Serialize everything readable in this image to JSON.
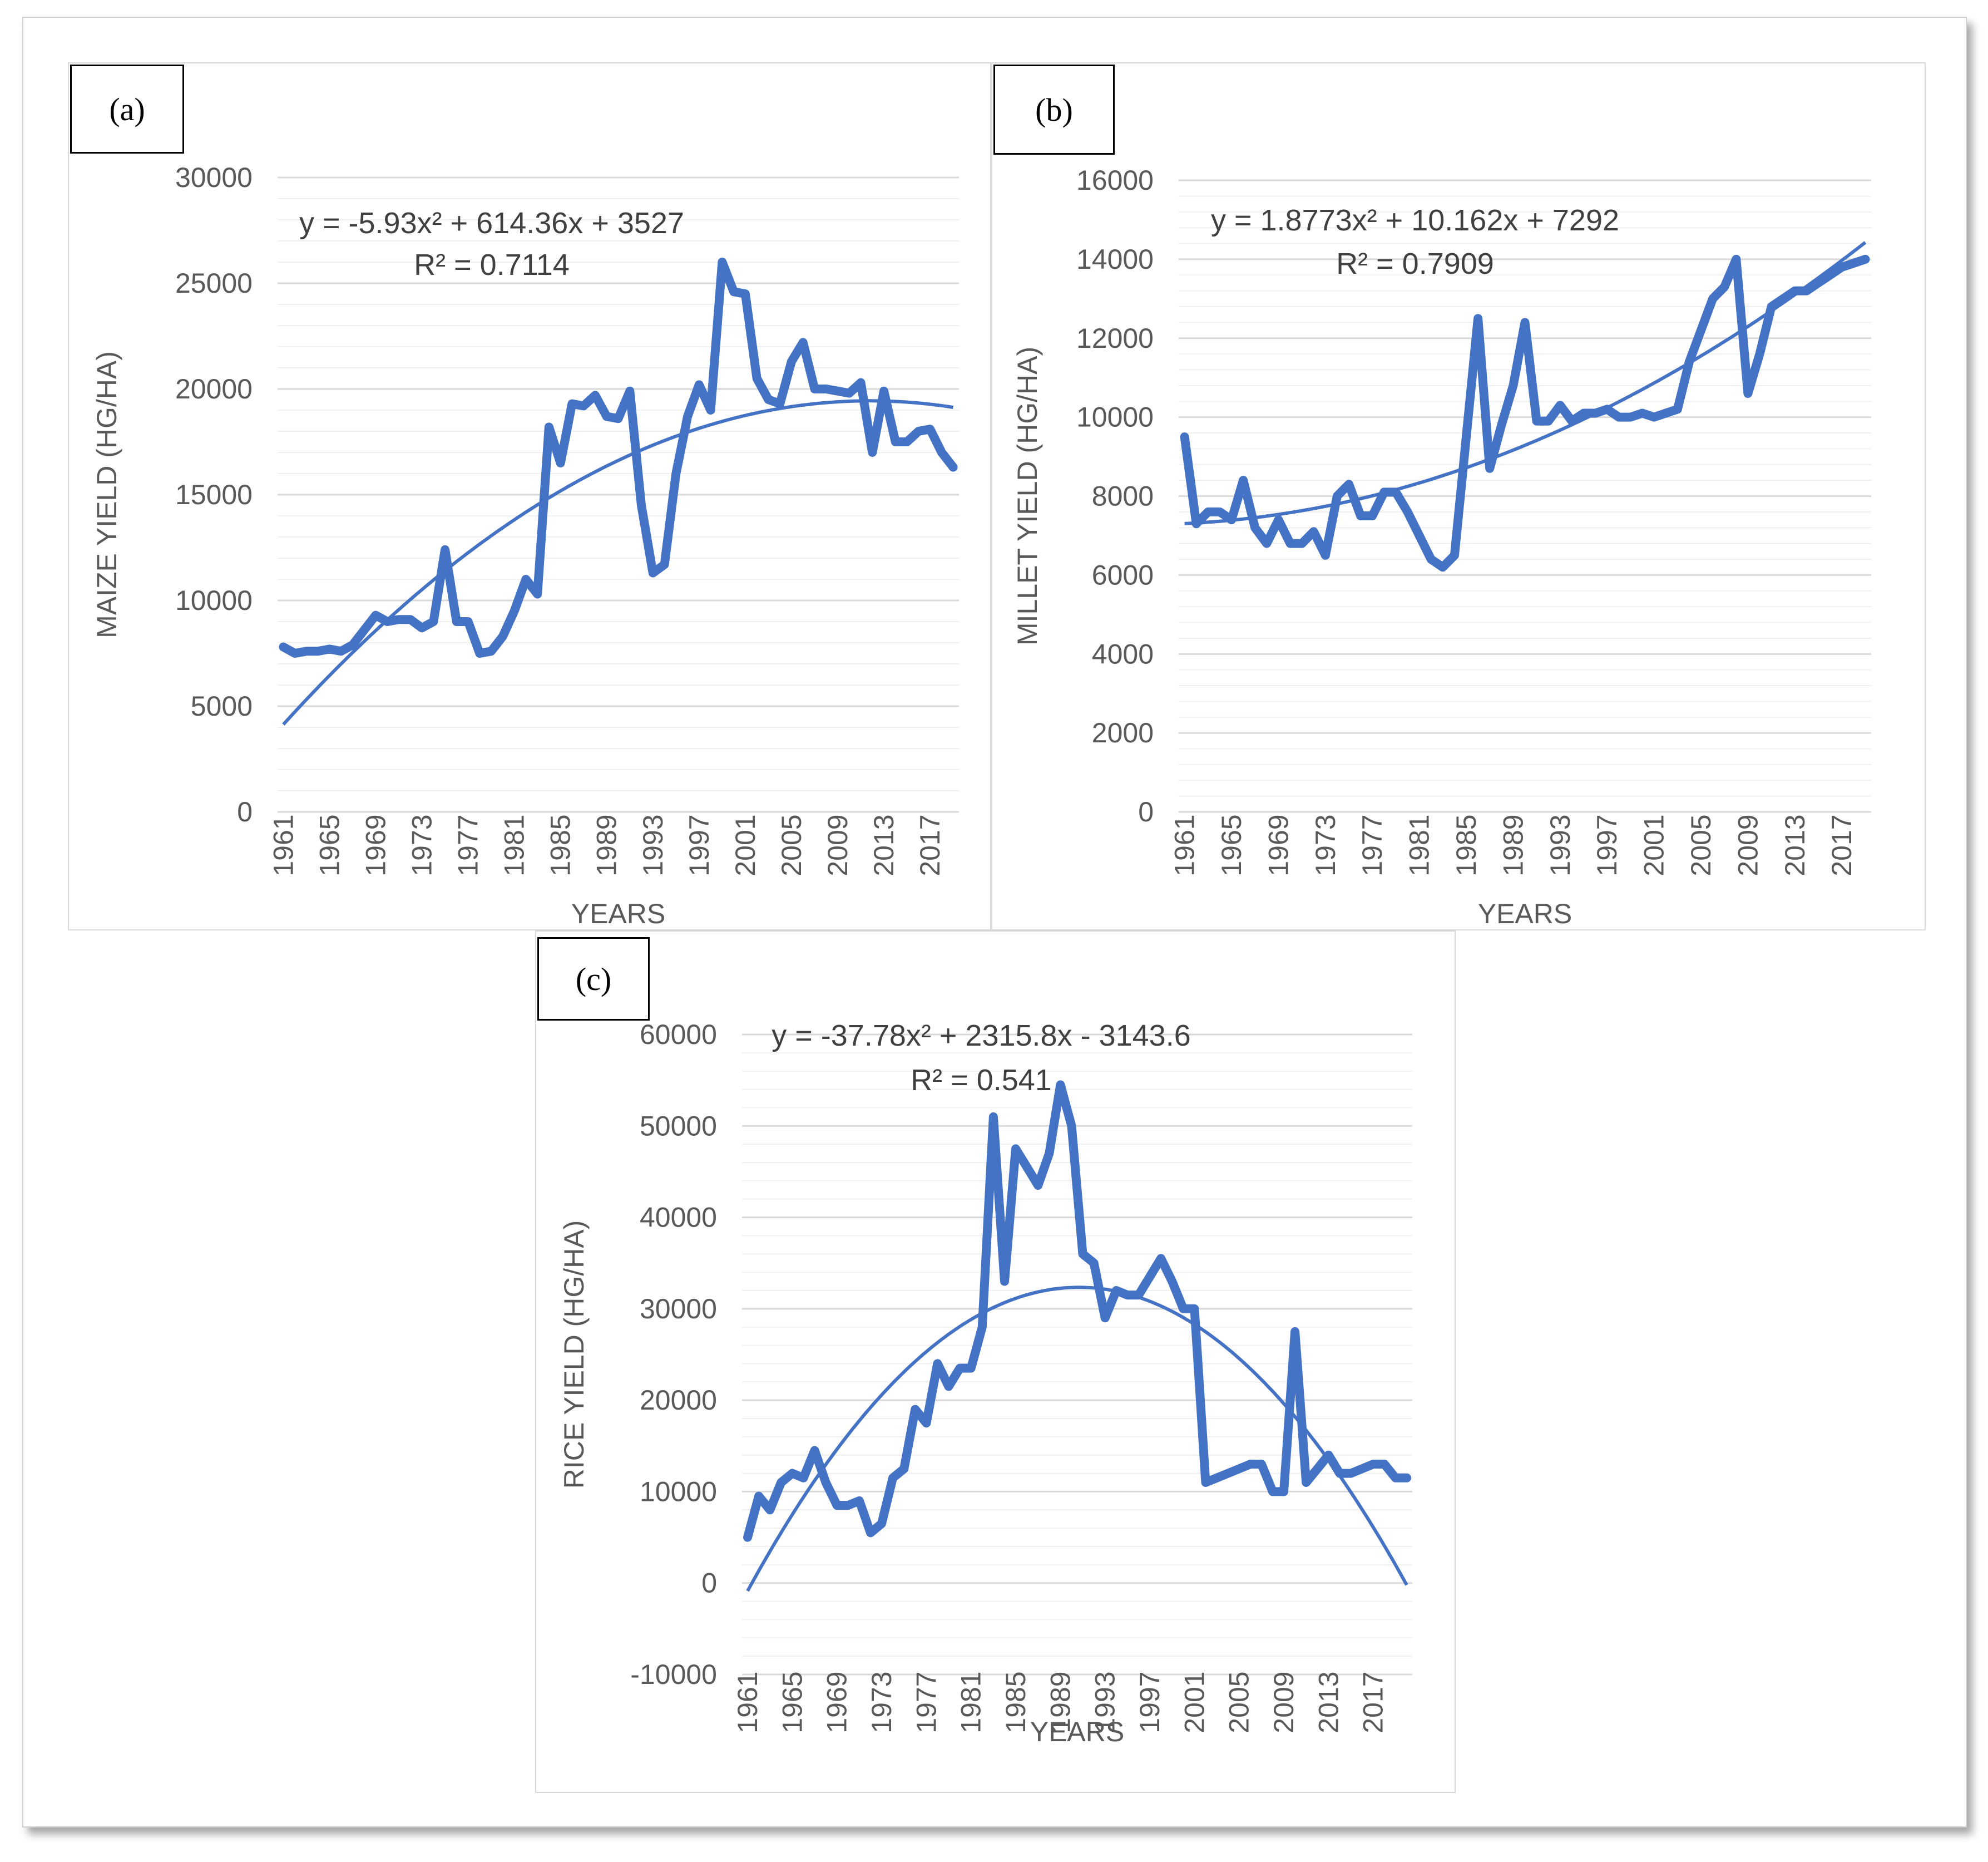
{
  "chart_data": [
    {
      "panel_label": "(a)",
      "type": "line",
      "ylabel": "MAIZE YIELD (HG/HA)",
      "xlabel": "YEARS",
      "ylim": [
        0,
        30000
      ],
      "yticks": [
        0,
        5000,
        10000,
        15000,
        20000,
        25000,
        30000
      ],
      "ytick_labels": [
        "0",
        "5000",
        "10000",
        "15000",
        "20000",
        "25000",
        "30000"
      ],
      "xtick_labels": [
        "1961",
        "1965",
        "1969",
        "1973",
        "1977",
        "1981",
        "1985",
        "1989",
        "1993",
        "1997",
        "2001",
        "2005",
        "2009",
        "2013",
        "2017"
      ],
      "x_start_year": 1961,
      "trend_equation": "y = -5.93x² + 614.36x + 3527",
      "r_squared": "R² = 0.7114",
      "trend": {
        "a": -5.93,
        "b": 614.36,
        "c": 3527
      },
      "series": [
        {
          "name": "Maize yield",
          "color": "#4472C4",
          "values": [
            7800,
            7500,
            7600,
            7600,
            7700,
            7600,
            7900,
            8600,
            9300,
            9000,
            9100,
            9100,
            8700,
            9000,
            12400,
            9000,
            9000,
            7500,
            7600,
            8300,
            9500,
            11000,
            10300,
            18200,
            16500,
            19300,
            19200,
            19700,
            18700,
            18600,
            19900,
            14500,
            11300,
            11700,
            16000,
            18700,
            20200,
            19000,
            26000,
            24600,
            24500,
            20500,
            19500,
            19300,
            21300,
            22200,
            20000,
            20000,
            19900,
            19800,
            20300,
            17000,
            19900,
            17500,
            17500,
            18000,
            18100,
            17000,
            16300
          ]
        }
      ]
    },
    {
      "panel_label": "(b)",
      "type": "line",
      "ylabel": "MILLET YIELD (HG/HA)",
      "xlabel": "YEARS",
      "ylim": [
        0,
        16000
      ],
      "yticks": [
        0,
        2000,
        4000,
        6000,
        8000,
        10000,
        12000,
        14000,
        16000
      ],
      "ytick_labels": [
        "0",
        "2000",
        "4000",
        "6000",
        "8000",
        "10000",
        "12000",
        "14000",
        "16000"
      ],
      "xtick_labels": [
        "1961",
        "1965",
        "1969",
        "1973",
        "1977",
        "1981",
        "1985",
        "1989",
        "1993",
        "1997",
        "2001",
        "2005",
        "2009",
        "2013",
        "2017"
      ],
      "x_start_year": 1961,
      "trend_equation": "y = 1.8773x² + 10.162x + 7292",
      "r_squared": "R² = 0.7909",
      "trend": {
        "a": 1.8773,
        "b": 10.162,
        "c": 7292
      },
      "series": [
        {
          "name": "Millet yield",
          "color": "#4472C4",
          "values": [
            9500,
            7300,
            7600,
            7600,
            7400,
            8400,
            7200,
            6800,
            7400,
            6800,
            6800,
            7100,
            6500,
            8000,
            8300,
            7500,
            7500,
            8100,
            8100,
            7600,
            7000,
            6400,
            6200,
            6500,
            9500,
            12500,
            8700,
            9800,
            10800,
            12400,
            9900,
            9900,
            10300,
            9900,
            10100,
            10100,
            10200,
            10000,
            10000,
            10100,
            10000,
            10100,
            10200,
            11400,
            12200,
            13000,
            13300,
            14000,
            10600,
            11600,
            12800,
            13000,
            13200,
            13200,
            13400,
            13600,
            13800,
            13900,
            14000
          ]
        }
      ]
    },
    {
      "panel_label": "(c)",
      "type": "line",
      "ylabel": "RICE YIELD (HG/HA)",
      "xlabel": "YEARS",
      "ylim": [
        -10000,
        60000
      ],
      "yticks": [
        -10000,
        0,
        10000,
        20000,
        30000,
        40000,
        50000,
        60000
      ],
      "ytick_labels": [
        "-10000",
        "0",
        "10000",
        "20000",
        "30000",
        "40000",
        "50000",
        "60000"
      ],
      "xtick_labels": [
        "1961",
        "1965",
        "1969",
        "1973",
        "1977",
        "1981",
        "1985",
        "1989",
        "1993",
        "1997",
        "2001",
        "2005",
        "2009",
        "2013",
        "2017"
      ],
      "x_start_year": 1961,
      "trend_equation": "y = -37.78x² + 2315.8x - 3143.6",
      "r_squared": "R² = 0.541",
      "trend": {
        "a": -37.78,
        "b": 2315.8,
        "c": -3143.6
      },
      "series": [
        {
          "name": "Rice yield",
          "color": "#4472C4",
          "values": [
            5000,
            9500,
            8000,
            11000,
            12000,
            11500,
            14500,
            11000,
            8500,
            8500,
            9000,
            5500,
            6500,
            11500,
            12500,
            19000,
            17500,
            24000,
            21500,
            23500,
            23500,
            28000,
            51000,
            33000,
            47500,
            45500,
            43500,
            47000,
            54500,
            50000,
            36000,
            35000,
            29000,
            32000,
            31500,
            31500,
            33500,
            35500,
            33000,
            30000,
            30000,
            11000,
            11500,
            12000,
            12500,
            13000,
            13000,
            10000,
            10000,
            27500,
            11000,
            12500,
            14000,
            12000,
            12000,
            12500,
            13000,
            13000,
            11500,
            11500
          ]
        }
      ]
    }
  ]
}
